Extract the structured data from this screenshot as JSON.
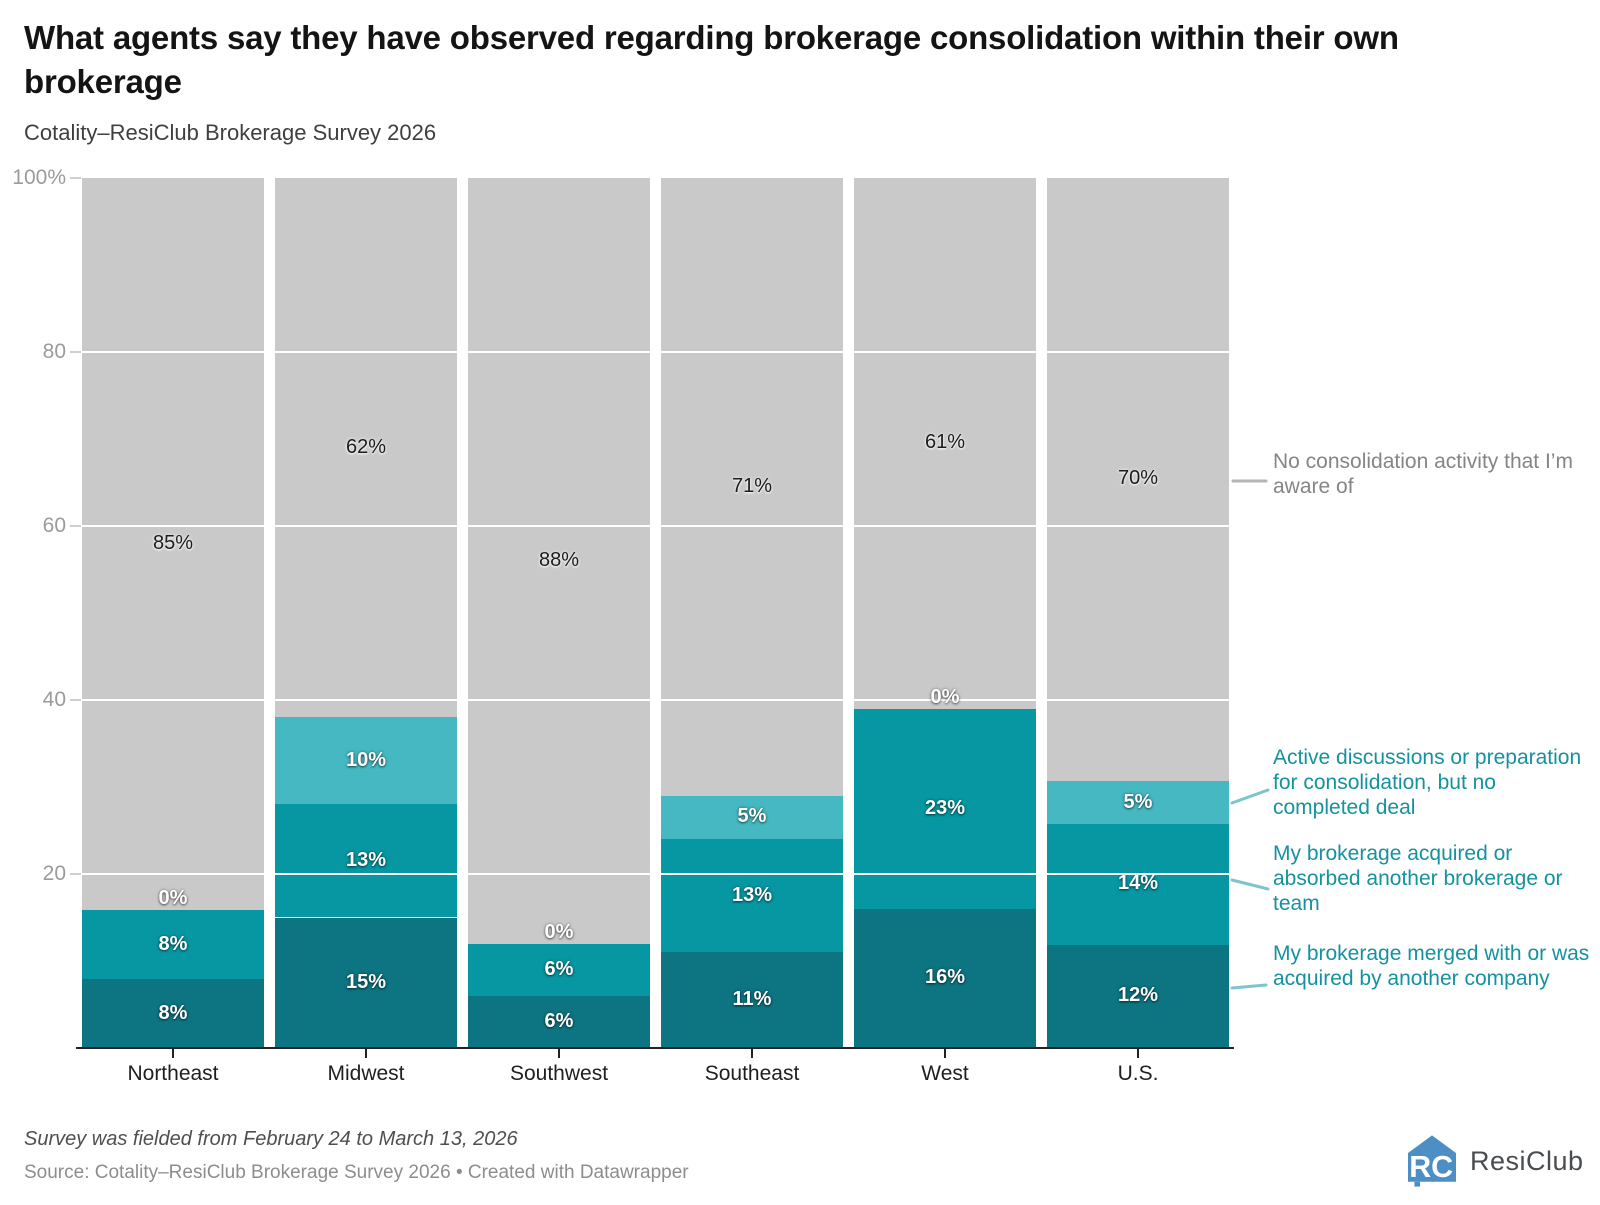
{
  "header": {
    "title": "What agents say they have observed regarding brokerage consolidation within their own brokerage",
    "subtitle": "Cotality–ResiClub Brokerage Survey 2026"
  },
  "chart_data": {
    "type": "bar",
    "variant": "stacked-column",
    "categories": [
      "Northeast",
      "Midwest",
      "Southwest",
      "Southeast",
      "West",
      "U.S."
    ],
    "series": [
      {
        "name": "My brokerage merged with or was acquired by another company",
        "color": "#0d7481",
        "values": [
          8,
          15,
          6,
          11,
          16,
          12
        ]
      },
      {
        "name": "My brokerage acquired or absorbed another brokerage or team",
        "color": "#0697a3",
        "values": [
          8,
          13,
          6,
          13,
          23,
          14
        ]
      },
      {
        "name": "Active discussions or preparation for consolidation, but no completed deal",
        "color": "#45b8c1",
        "values": [
          0,
          10,
          0,
          5,
          0,
          5
        ]
      },
      {
        "name": "No consolidation activity that I’m aware of",
        "color": "#c9c9c9",
        "values": [
          85,
          62,
          88,
          71,
          61,
          70
        ]
      }
    ],
    "value_suffix": "%",
    "ylabel": "",
    "xlabel": "",
    "ylim": [
      0,
      100
    ],
    "grid": true,
    "y_ticks": [
      100,
      80,
      60,
      40,
      20
    ],
    "y_tick_labels": [
      "100%",
      "80",
      "60",
      "40",
      "20"
    ],
    "legend_position": "right-direct-labels",
    "legend_text_colors": {
      "teal": "#15929f",
      "gray": "#858585"
    }
  },
  "footer": {
    "note": "Survey was fielded from February 24 to March 13, 2026",
    "source": "Source: Cotality–ResiClub Brokerage Survey 2026 • Created with Datawrapper",
    "logo_text": "ResiClub"
  }
}
